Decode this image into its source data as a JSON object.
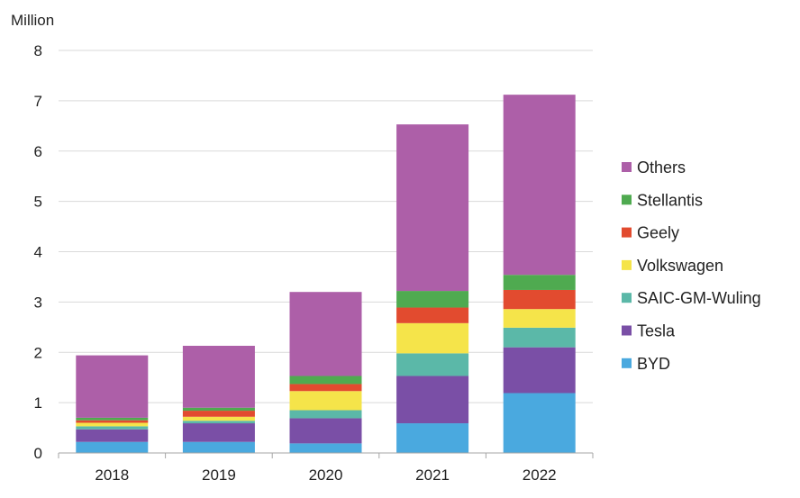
{
  "chart_data": {
    "type": "bar",
    "stacked": true,
    "unit_label": "Million",
    "categories": [
      "2018",
      "2019",
      "2020",
      "2021",
      "2022"
    ],
    "ylim": [
      0,
      8
    ],
    "yticks": [
      "0",
      "1",
      "2",
      "3",
      "4",
      "5",
      "6",
      "7",
      "8"
    ],
    "grid": "horizontal",
    "legend_position": "right",
    "series": [
      {
        "name": "BYD",
        "color": "#4aa9df",
        "values": [
          0.22,
          0.22,
          0.19,
          0.59,
          1.19
        ]
      },
      {
        "name": "Tesla",
        "color": "#7a4fa6",
        "values": [
          0.25,
          0.37,
          0.5,
          0.94,
          0.91
        ]
      },
      {
        "name": "SAIC-GM-Wuling",
        "color": "#5bb8a8",
        "values": [
          0.06,
          0.05,
          0.16,
          0.45,
          0.39
        ]
      },
      {
        "name": "Volkswagen",
        "color": "#f5e44a",
        "values": [
          0.07,
          0.08,
          0.38,
          0.6,
          0.37
        ]
      },
      {
        "name": "Geely",
        "color": "#e24b2f",
        "values": [
          0.05,
          0.12,
          0.14,
          0.31,
          0.38
        ]
      },
      {
        "name": "Stellantis",
        "color": "#4faa50",
        "values": [
          0.05,
          0.06,
          0.16,
          0.33,
          0.3
        ]
      },
      {
        "name": "Others",
        "color": "#ad5fa8",
        "values": [
          1.24,
          1.23,
          1.67,
          3.31,
          3.58
        ]
      }
    ]
  }
}
